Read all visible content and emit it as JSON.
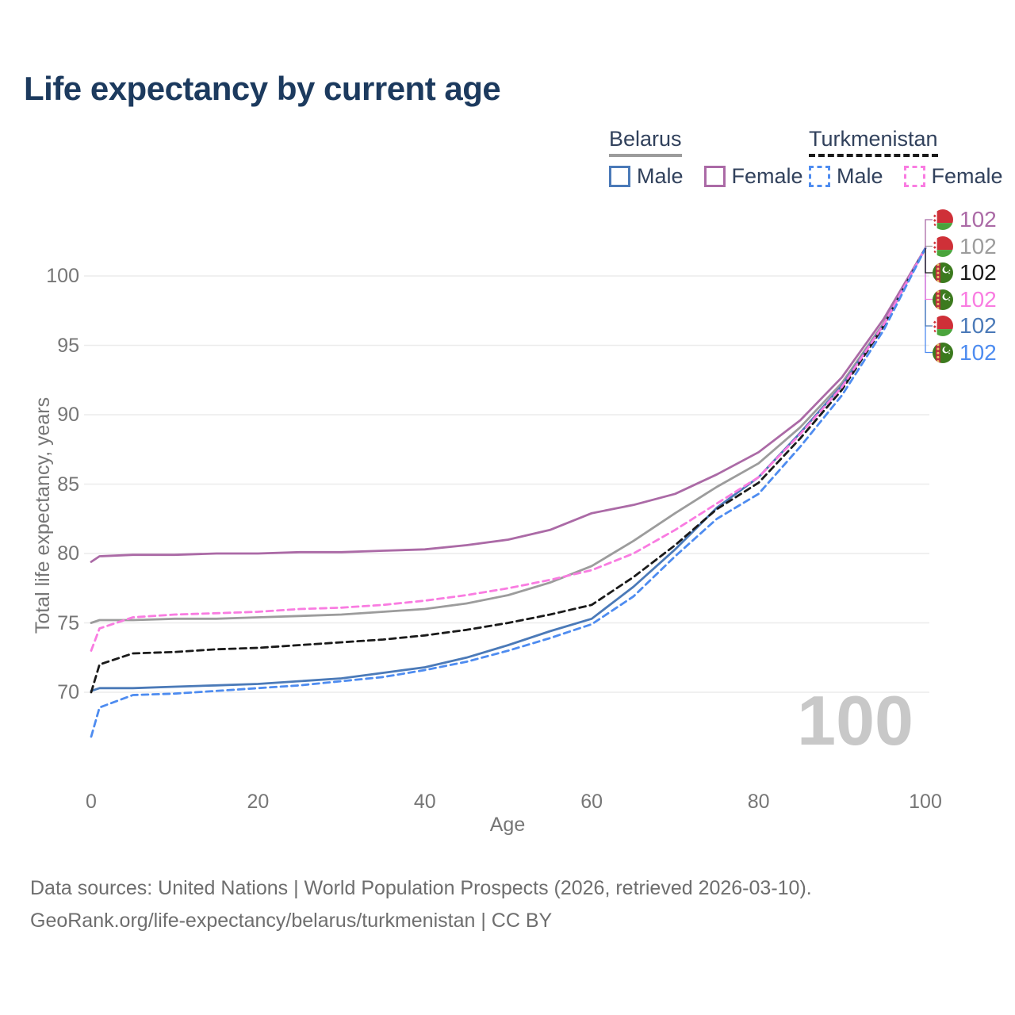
{
  "title": "Life expectancy by current age",
  "watermark": "100",
  "axes": {
    "x_label": "Age",
    "y_label": "Total life expectancy, years"
  },
  "footer": {
    "line1": "Data sources: United Nations | World Population Prospects (2026, retrieved 2026-03-10).",
    "line2": "GeoRank.org/life-expectancy/belarus/turkmenistan | CC BY"
  },
  "colors": {
    "title": "#1c3a5e",
    "axis_text": "#767676",
    "grid": "#ececec",
    "watermark": "#c8c8c8",
    "footer": "#6e6e6e",
    "legend_text": "#31415c"
  },
  "legend": {
    "groups": [
      {
        "name": "Belarus",
        "underline": {
          "color": "#9c9c9c",
          "dashed": false
        },
        "items": [
          {
            "label": "Male",
            "color": "#4b7ab8",
            "dashed": false
          },
          {
            "label": "Female",
            "color": "#ab6aa6",
            "dashed": false
          }
        ]
      },
      {
        "name": "Turkmenistan",
        "underline": {
          "color": "#1a1a1a",
          "dashed": true
        },
        "items": [
          {
            "label": "Male",
            "color": "#4e8cf0",
            "dashed": true
          },
          {
            "label": "Female",
            "color": "#f97ce1",
            "dashed": true
          }
        ]
      }
    ]
  },
  "chart_data": {
    "type": "line",
    "title": "Life expectancy by current age",
    "xlabel": "Age",
    "ylabel": "Total life expectancy, years",
    "xlim": [
      0,
      100
    ],
    "ylim": [
      63.5,
      103.5
    ],
    "xticks": [
      0,
      20,
      40,
      60,
      80,
      100
    ],
    "yticks": [
      70,
      75,
      80,
      85,
      90,
      95,
      100
    ],
    "grid": "horizontal-only",
    "legend_position": "top-right",
    "x": [
      0,
      1,
      5,
      10,
      15,
      20,
      25,
      30,
      35,
      40,
      45,
      50,
      55,
      60,
      65,
      70,
      75,
      80,
      85,
      90,
      95,
      100
    ],
    "draw_order": [
      1,
      0,
      4,
      2,
      3,
      5
    ],
    "series": [
      {
        "id": "belarus-female",
        "name": "Belarus Female",
        "country": "Belarus",
        "sex": "female",
        "color": "#ab6aa6",
        "dashed": false,
        "end_value": "102",
        "values": [
          79.4,
          79.8,
          79.9,
          79.9,
          80.0,
          80.0,
          80.1,
          80.1,
          80.2,
          80.3,
          80.6,
          81.0,
          81.7,
          82.9,
          83.5,
          84.3,
          85.7,
          87.3,
          89.6,
          92.7,
          96.9,
          102
        ]
      },
      {
        "id": "belarus-total",
        "name": "Belarus (both sexes)",
        "country": "Belarus",
        "sex": "both",
        "color": "#9c9c9c",
        "dashed": false,
        "end_value": "102",
        "values": [
          75.0,
          75.2,
          75.2,
          75.3,
          75.3,
          75.4,
          75.5,
          75.6,
          75.8,
          76.0,
          76.4,
          77.0,
          77.9,
          79.1,
          80.9,
          82.9,
          84.8,
          86.5,
          89.1,
          92.3,
          96.6,
          102
        ]
      },
      {
        "id": "turkmenistan-total",
        "name": "Turkmenistan (both sexes)",
        "country": "Turkmenistan",
        "sex": "both",
        "color": "#1a1a1a",
        "dashed": true,
        "end_value": "102",
        "values": [
          70.0,
          72.0,
          72.8,
          72.9,
          73.1,
          73.2,
          73.4,
          73.6,
          73.8,
          74.1,
          74.5,
          75.0,
          75.6,
          76.3,
          78.3,
          80.6,
          83.2,
          85.1,
          88.3,
          91.8,
          96.4,
          102
        ]
      },
      {
        "id": "turkmenistan-female",
        "name": "Turkmenistan Female",
        "country": "Turkmenistan",
        "sex": "female",
        "color": "#f97ce1",
        "dashed": true,
        "end_value": "102",
        "values": [
          73.0,
          74.6,
          75.4,
          75.6,
          75.7,
          75.8,
          76.0,
          76.1,
          76.3,
          76.6,
          77.0,
          77.5,
          78.1,
          78.8,
          80.0,
          81.7,
          83.6,
          85.5,
          88.6,
          92.0,
          96.5,
          102
        ]
      },
      {
        "id": "belarus-male",
        "name": "Belarus Male",
        "country": "Belarus",
        "sex": "male",
        "color": "#4b7ab8",
        "dashed": false,
        "end_value": "102",
        "values": [
          70.1,
          70.3,
          70.3,
          70.4,
          70.5,
          70.6,
          70.8,
          71.0,
          71.4,
          71.8,
          72.5,
          73.4,
          74.4,
          75.3,
          77.6,
          80.3,
          83.3,
          85.5,
          88.7,
          92.1,
          96.5,
          102
        ]
      },
      {
        "id": "turkmenistan-male",
        "name": "Turkmenistan Male",
        "country": "Turkmenistan",
        "sex": "male",
        "color": "#4e8cf0",
        "dashed": true,
        "end_value": "102",
        "values": [
          66.8,
          68.9,
          69.8,
          69.9,
          70.1,
          70.3,
          70.5,
          70.8,
          71.1,
          71.6,
          72.2,
          73.0,
          73.9,
          74.9,
          76.9,
          79.8,
          82.5,
          84.3,
          87.7,
          91.4,
          96.1,
          102
        ]
      }
    ]
  }
}
